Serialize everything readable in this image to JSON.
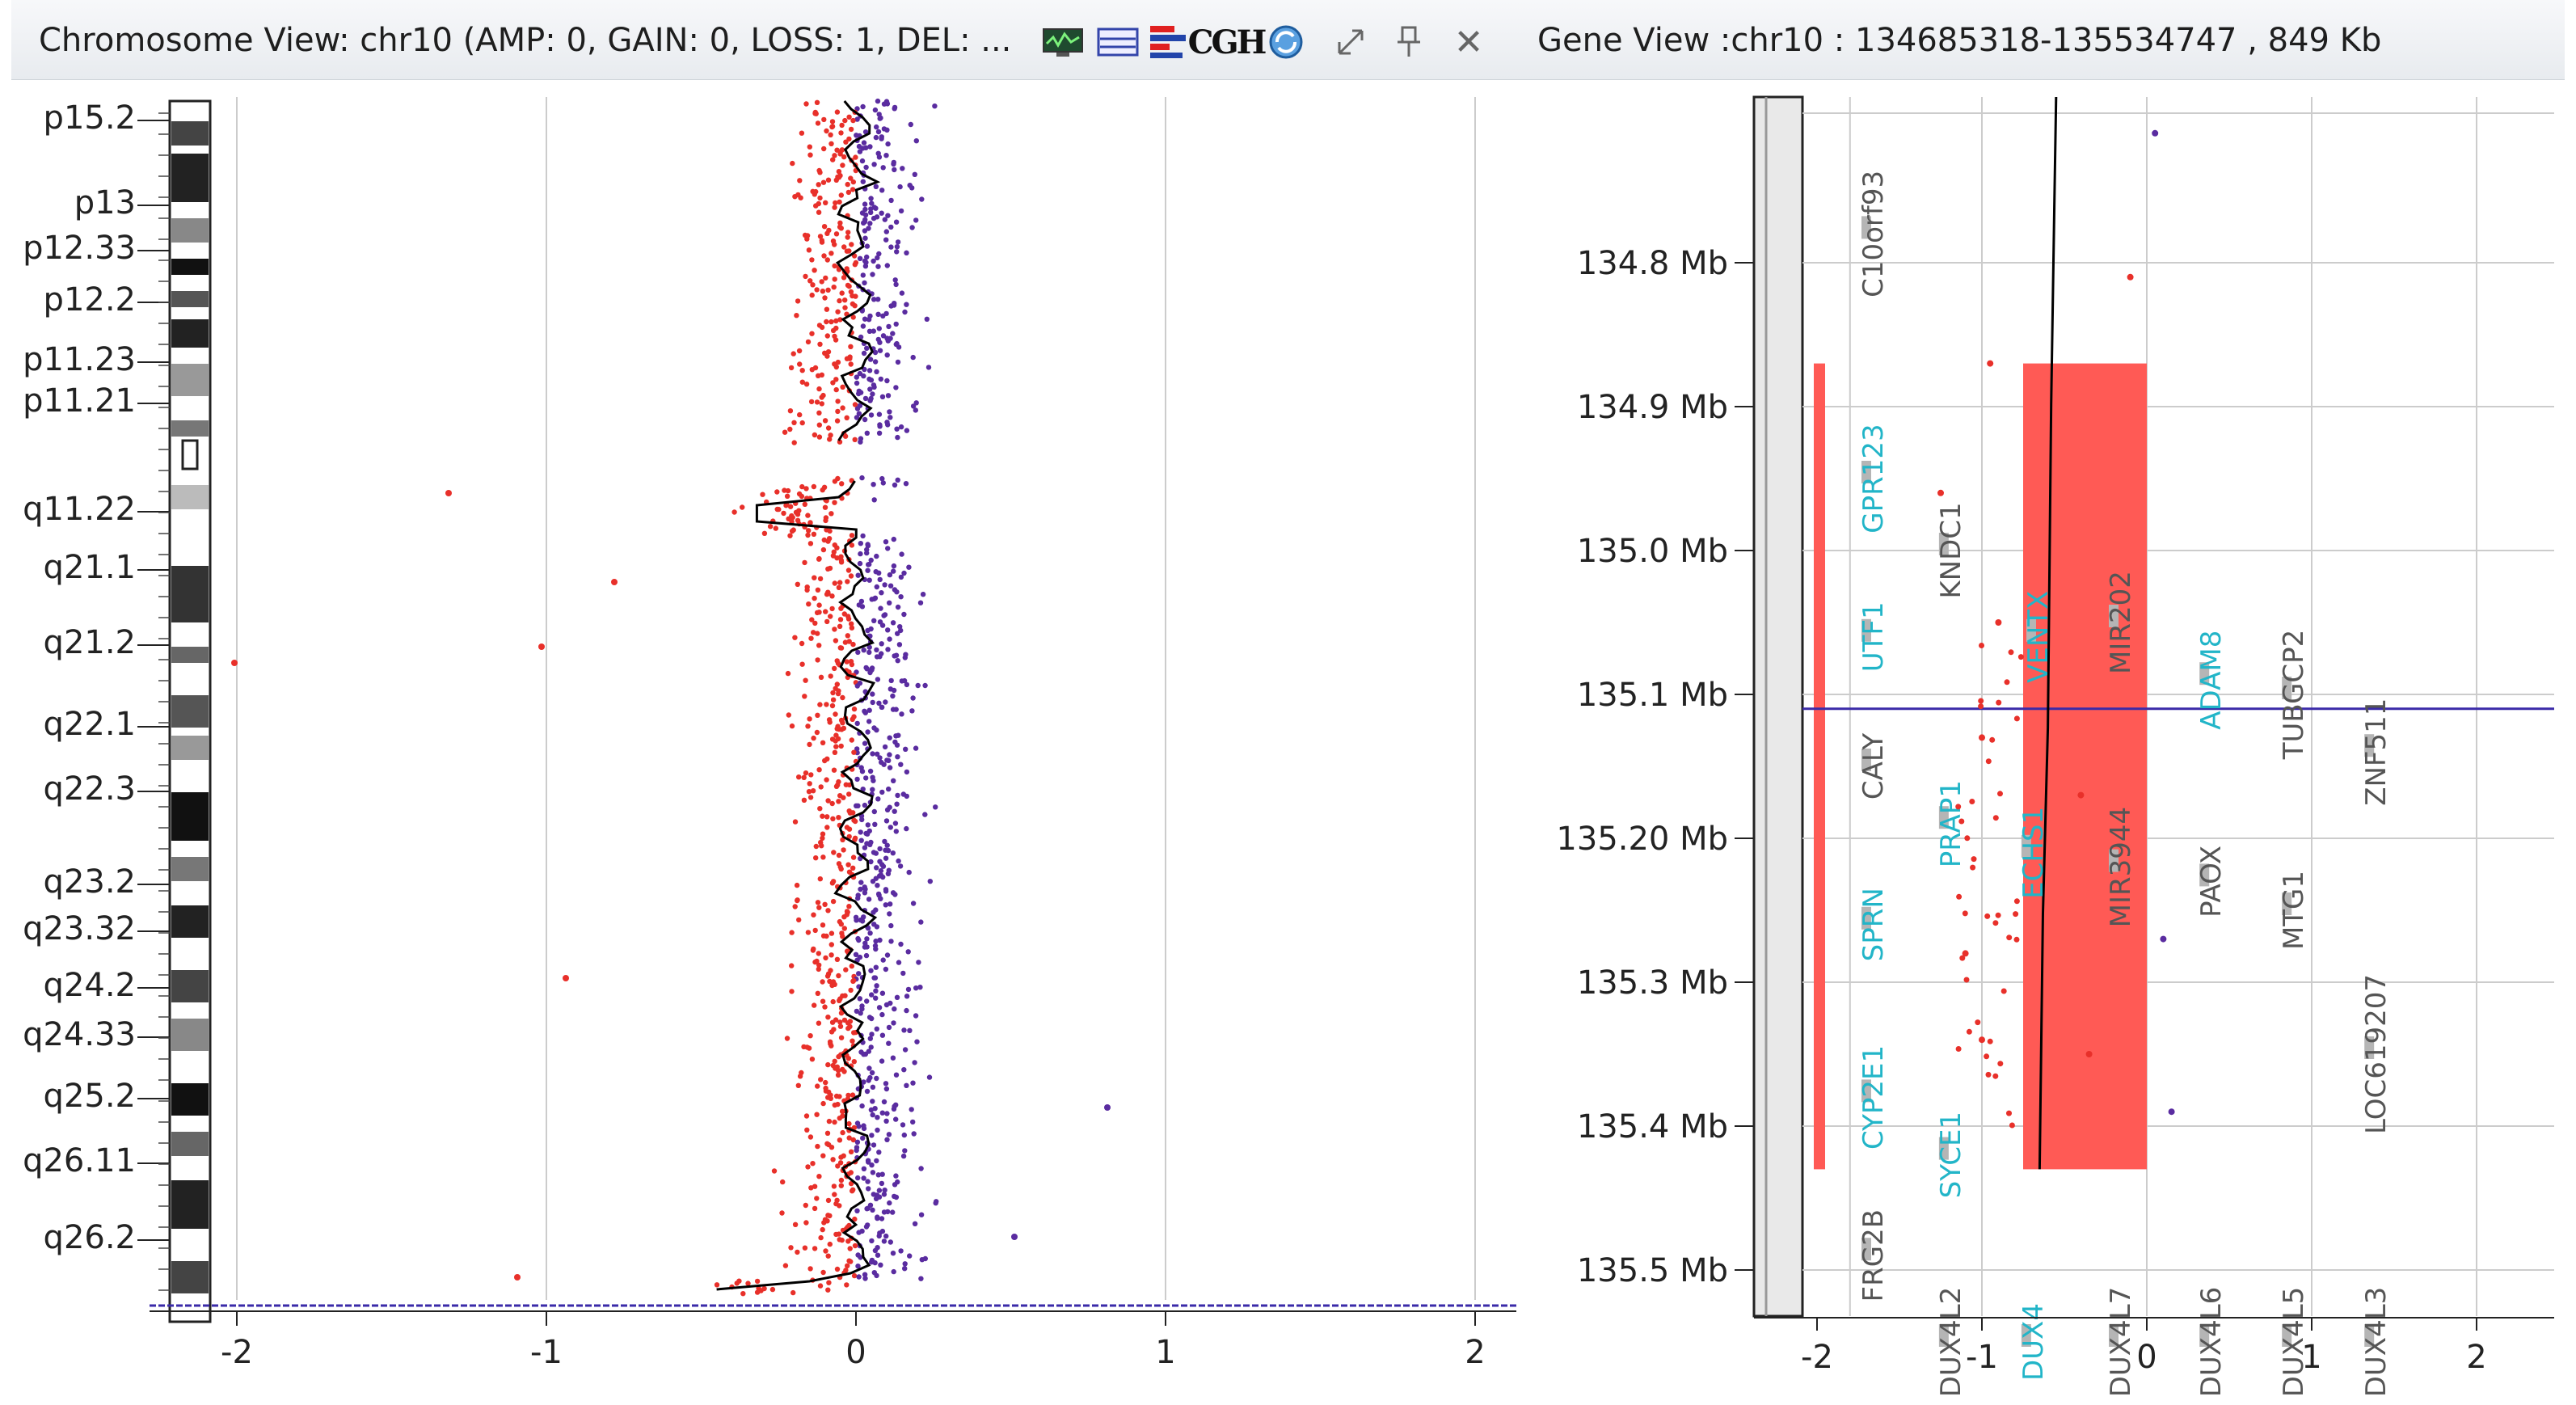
{
  "chromosome_view": {
    "title": "Chromosome View: chr10 (AMP: 0, GAIN: 0, LOSS: 1, DEL: ...",
    "toolbar_icons": [
      "monitor-icon",
      "overlay-icon",
      "legend-icon",
      "cgh-icon",
      "refresh-icon",
      "resize-icon",
      "pin-icon",
      "close-icon"
    ],
    "cgh_label": "CGH",
    "close_label": "✕",
    "band_labels": [
      "p15.2",
      "p13",
      "p12.33",
      "p12.2",
      "p11.23",
      "p11.21",
      "q11.22",
      "q21.1",
      "q21.2",
      "q22.1",
      "q22.3",
      "q23.2",
      "q23.32",
      "q24.2",
      "q24.33",
      "q25.2",
      "q26.11",
      "q26.2"
    ],
    "x_ticks": [
      "-2",
      "-1",
      "0",
      "1",
      "2"
    ],
    "colors": {
      "loss": "#e8302a",
      "gain": "#5a2ca0",
      "trend": "#000000",
      "grid": "#cccccc"
    }
  },
  "gene_view": {
    "title": "Gene View :chr10 : 134685318-135534747 , 849 Kb",
    "y_labels": [
      "134.8 Mb",
      "134.9 Mb",
      "135.0 Mb",
      "135.1 Mb",
      "135.20 Mb",
      "135.3 Mb",
      "135.4 Mb",
      "135.5 Mb"
    ],
    "x_ticks": [
      "-2",
      "-1",
      "0",
      "1",
      "2"
    ],
    "genes": [
      {
        "name": "C10orf93",
        "color": "#555555"
      },
      {
        "name": "GPR123",
        "color": "#22b5c8"
      },
      {
        "name": "KNDC1",
        "color": "#555555"
      },
      {
        "name": "UTF1",
        "color": "#22b5c8"
      },
      {
        "name": "VENTX",
        "color": "#22b5c8"
      },
      {
        "name": "MIR202",
        "color": "#555555"
      },
      {
        "name": "ADAM8",
        "color": "#22b5c8"
      },
      {
        "name": "TUBGCP2",
        "color": "#555555"
      },
      {
        "name": "ZNF511",
        "color": "#555555"
      },
      {
        "name": "CALY",
        "color": "#555555"
      },
      {
        "name": "PRAP1",
        "color": "#22b5c8"
      },
      {
        "name": "ECHS1",
        "color": "#22b5c8"
      },
      {
        "name": "MIR3944",
        "color": "#555555"
      },
      {
        "name": "PAOX",
        "color": "#555555"
      },
      {
        "name": "MTG1",
        "color": "#555555"
      },
      {
        "name": "SPRN",
        "color": "#22b5c8"
      },
      {
        "name": "LOC619207",
        "color": "#555555"
      },
      {
        "name": "CYP2E1",
        "color": "#22b5c8"
      },
      {
        "name": "SYCE1",
        "color": "#22b5c8"
      },
      {
        "name": "FRG2B",
        "color": "#555555"
      },
      {
        "name": "DUX4L2",
        "color": "#555555"
      },
      {
        "name": "DUX4",
        "color": "#22b5c8"
      },
      {
        "name": "DUX4L7",
        "color": "#555555"
      },
      {
        "name": "DUX4L6",
        "color": "#555555"
      },
      {
        "name": "DUX4L5",
        "color": "#555555"
      },
      {
        "name": "DUX4L3",
        "color": "#555555"
      }
    ],
    "colors": {
      "region": "#ff5a55",
      "position_line": "#3a2aa8"
    }
  }
}
